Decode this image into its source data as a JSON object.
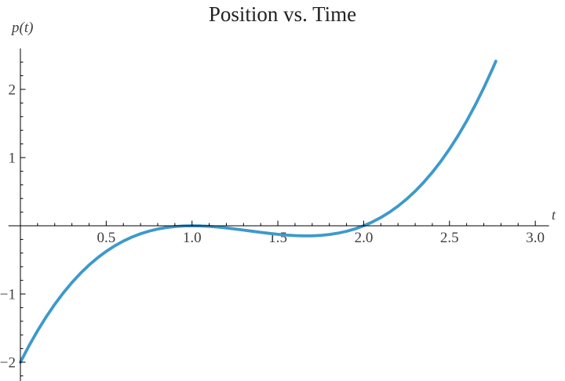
{
  "chart_data": {
    "type": "line",
    "title": "Position vs. Time",
    "xlabel": "t",
    "ylabel": "p(t)",
    "xlim": [
      -0.07,
      3.08
    ],
    "ylim": [
      -2.28,
      2.6
    ],
    "grid": false,
    "legend_position": "none",
    "axis_color": "#000000",
    "tick_label_color": "#3f3f3f",
    "title_color": "#222222",
    "background_color": "#ffffff",
    "x_ticks": {
      "major": [
        0.5,
        1.0,
        1.5,
        2.0,
        2.5,
        3.0
      ],
      "labels": [
        "0.5",
        "1.0",
        "1.5",
        "2.0",
        "2.5",
        "3.0"
      ],
      "minor_step": 0.1,
      "minor_range": [
        0.1,
        3.0
      ]
    },
    "y_ticks": {
      "major": [
        -2,
        -1,
        1,
        2
      ],
      "labels": [
        "−2",
        "−1",
        "1",
        "2"
      ],
      "minor_step": 0.2,
      "minor_range": [
        -2.2,
        2.4
      ]
    },
    "series": [
      {
        "color": "#3D99CC",
        "stroke_width": 3.8,
        "points": [
          [
            0,
            -2
          ],
          [
            0.05,
            -1.7599
          ],
          [
            0.1,
            -1.539
          ],
          [
            0.15,
            -1.3366
          ],
          [
            0.2,
            -1.152
          ],
          [
            0.25,
            -0.9844
          ],
          [
            0.3,
            -0.833
          ],
          [
            0.35,
            -0.6971
          ],
          [
            0.4,
            -0.576
          ],
          [
            0.45,
            -0.4689
          ],
          [
            0.5,
            -0.375
          ],
          [
            0.55,
            -0.2936
          ],
          [
            0.6,
            -0.224
          ],
          [
            0.65,
            -0.1654
          ],
          [
            0.7,
            -0.117
          ],
          [
            0.75,
            -0.0781
          ],
          [
            0.8,
            -0.048
          ],
          [
            0.85,
            -0.0259
          ],
          [
            0.9,
            -0.011
          ],
          [
            0.95,
            -0.0026
          ],
          [
            1,
            0
          ],
          [
            1.05,
            -0.0024
          ],
          [
            1.1,
            -0.009
          ],
          [
            1.15,
            -0.0191
          ],
          [
            1.2,
            -0.032
          ],
          [
            1.25,
            -0.0469
          ],
          [
            1.3,
            -0.063
          ],
          [
            1.35,
            -0.0796
          ],
          [
            1.4,
            -0.096
          ],
          [
            1.45,
            -0.1114
          ],
          [
            1.5,
            -0.125
          ],
          [
            1.55,
            -0.1361
          ],
          [
            1.6,
            -0.144
          ],
          [
            1.65,
            -0.1479
          ],
          [
            1.7,
            -0.147
          ],
          [
            1.75,
            -0.1406
          ],
          [
            1.8,
            -0.128
          ],
          [
            1.85,
            -0.1084
          ],
          [
            1.9,
            -0.081
          ],
          [
            1.95,
            -0.0451
          ],
          [
            2,
            0
          ],
          [
            2.05,
            0.0551
          ],
          [
            2.1,
            0.121
          ],
          [
            2.15,
            0.1984
          ],
          [
            2.2,
            0.288
          ],
          [
            2.25,
            0.3906
          ],
          [
            2.3,
            0.507
          ],
          [
            2.35,
            0.6379
          ],
          [
            2.4,
            0.784
          ],
          [
            2.45,
            0.9461
          ],
          [
            2.5,
            1.125
          ],
          [
            2.55,
            1.3214
          ],
          [
            2.6,
            1.536
          ],
          [
            2.65,
            1.7696
          ],
          [
            2.7,
            2.023
          ],
          [
            2.75,
            2.2969
          ],
          [
            2.77,
            2.4123
          ]
        ]
      }
    ]
  }
}
